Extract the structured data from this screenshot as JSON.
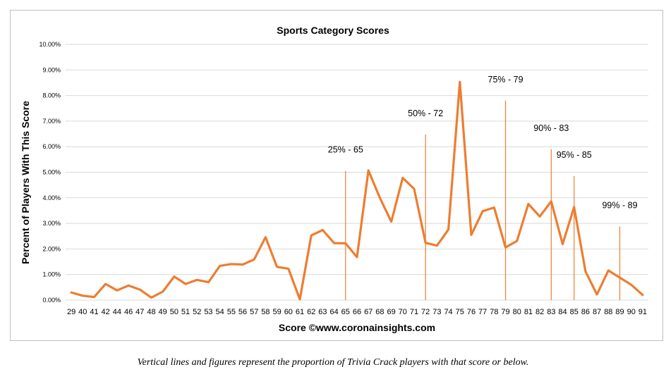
{
  "chart_data": {
    "type": "line",
    "title": "Sports Category Scores",
    "xlabel": "Score ©www.coronainsights.com",
    "ylabel": "Percent of Players With This Score",
    "ylim": [
      0,
      10
    ],
    "y_tick_labels": [
      "0.00%",
      "1.00%",
      "2.00%",
      "3.00%",
      "4.00%",
      "5.00%",
      "6.00%",
      "7.00%",
      "8.00%",
      "9.00%",
      "10.00%"
    ],
    "grid": true,
    "categories": [
      "29",
      "40",
      "41",
      "42",
      "44",
      "46",
      "47",
      "48",
      "49",
      "50",
      "51",
      "52",
      "53",
      "54",
      "55",
      "56",
      "57",
      "58",
      "59",
      "60",
      "61",
      "62",
      "63",
      "64",
      "65",
      "66",
      "67",
      "68",
      "69",
      "70",
      "71",
      "72",
      "73",
      "74",
      "75",
      "76",
      "77",
      "78",
      "79",
      "80",
      "81",
      "82",
      "83",
      "84",
      "85",
      "86",
      "87",
      "88",
      "89",
      "90",
      "91"
    ],
    "series": [
      {
        "color": "#ED7D31",
        "values": [
          0.3,
          0.17,
          0.12,
          0.63,
          0.38,
          0.57,
          0.41,
          0.1,
          0.33,
          0.92,
          0.63,
          0.79,
          0.7,
          1.34,
          1.41,
          1.39,
          1.59,
          2.46,
          1.3,
          1.23,
          0.03,
          2.53,
          2.74,
          2.23,
          2.22,
          1.68,
          5.07,
          4.0,
          3.07,
          4.78,
          4.35,
          2.24,
          2.13,
          2.76,
          8.53,
          2.55,
          3.48,
          3.62,
          2.06,
          2.31,
          3.76,
          3.27,
          3.86,
          2.19,
          3.64,
          1.12,
          0.22,
          1.16,
          0.88,
          0.6,
          0.2
        ]
      }
    ],
    "annotations": [
      {
        "label": "25% - 65",
        "x": "65",
        "line_top": 5.05
      },
      {
        "label": "50% - 72",
        "x": "72",
        "line_top": 6.48
      },
      {
        "label": "75% - 79",
        "x": "79",
        "line_top": 7.8
      },
      {
        "label": "90% - 83",
        "x": "83",
        "line_top": 5.9
      },
      {
        "label": "95% - 85",
        "x": "85",
        "line_top": 4.85
      },
      {
        "label": "99% - 89",
        "x": "89",
        "line_top": 2.88
      }
    ]
  },
  "caption": "Vertical lines and figures represent the proportion of Trivia Crack players with that score or below.",
  "colors": {
    "line": "#ED7D31",
    "marker_line": "#ED7D31",
    "grid": "#d9d9d9"
  }
}
